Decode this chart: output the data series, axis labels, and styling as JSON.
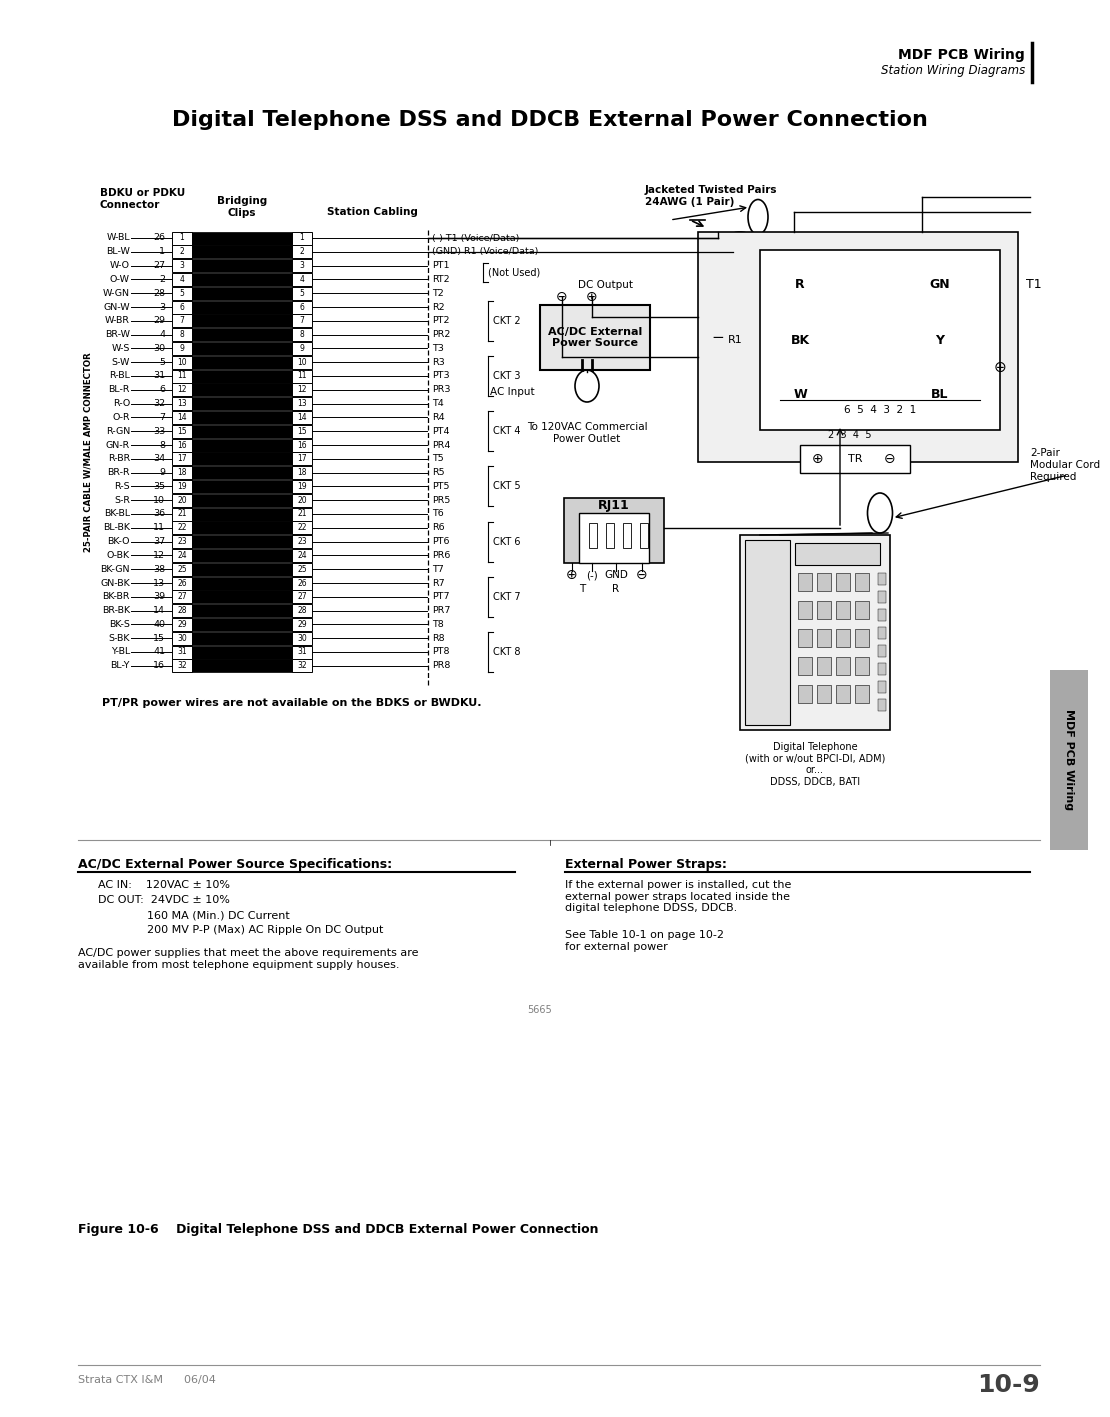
{
  "page_title": "Digital Telephone DSS and DDCB External Power Connection",
  "header_title": "MDF PCB Wiring",
  "header_subtitle": "Station Wiring Diagrams",
  "figure_label": "Figure 10-6    Digital Telephone DSS and DDCB External Power Connection",
  "footer_left": "Strata CTX I&M      06/04",
  "footer_right": "10-9",
  "side_label": "MDF PCB Wiring",
  "connector_label": "BDKU or PDKU\nConnector",
  "bridging_label": "Bridging\nClips",
  "station_cabling_label": "Station Cabling",
  "jacketed_pairs_label": "Jacketed Twisted Pairs\n24AWG (1 Pair)",
  "pair_cable_label": "25-PAIR CABLE W/MALE AMP CONNECTOR",
  "rows": [
    {
      "left_label": "W-BL",
      "left_num": "26",
      "pin": "1",
      "right_label": "T1 (Voice/Data)",
      "prefix": "(-) "
    },
    {
      "left_label": "BL-W",
      "left_num": "1",
      "pin": "2",
      "right_label": "R1 (Voice/Data)",
      "prefix": "(GND) "
    },
    {
      "left_label": "W-O",
      "left_num": "27",
      "pin": "3",
      "right_label": "PT1",
      "prefix": ""
    },
    {
      "left_label": "O-W",
      "left_num": "2",
      "pin": "4",
      "right_label": "RT2",
      "prefix": ""
    },
    {
      "left_label": "W-GN",
      "left_num": "28",
      "pin": "5",
      "right_label": "T2",
      "prefix": ""
    },
    {
      "left_label": "GN-W",
      "left_num": "3",
      "pin": "6",
      "right_label": "R2",
      "prefix": ""
    },
    {
      "left_label": "W-BR",
      "left_num": "29",
      "pin": "7",
      "right_label": "PT2",
      "prefix": ""
    },
    {
      "left_label": "BR-W",
      "left_num": "4",
      "pin": "8",
      "right_label": "PR2",
      "prefix": ""
    },
    {
      "left_label": "W-S",
      "left_num": "30",
      "pin": "9",
      "right_label": "T3",
      "prefix": ""
    },
    {
      "left_label": "S-W",
      "left_num": "5",
      "pin": "10",
      "right_label": "R3",
      "prefix": ""
    },
    {
      "left_label": "R-BL",
      "left_num": "31",
      "pin": "11",
      "right_label": "PT3",
      "prefix": ""
    },
    {
      "left_label": "BL-R",
      "left_num": "6",
      "pin": "12",
      "right_label": "PR3",
      "prefix": ""
    },
    {
      "left_label": "R-O",
      "left_num": "32",
      "pin": "13",
      "right_label": "T4",
      "prefix": ""
    },
    {
      "left_label": "O-R",
      "left_num": "7",
      "pin": "14",
      "right_label": "R4",
      "prefix": ""
    },
    {
      "left_label": "R-GN",
      "left_num": "33",
      "pin": "15",
      "right_label": "PT4",
      "prefix": ""
    },
    {
      "left_label": "GN-R",
      "left_num": "8",
      "pin": "16",
      "right_label": "PR4",
      "prefix": ""
    },
    {
      "left_label": "R-BR",
      "left_num": "34",
      "pin": "17",
      "right_label": "T5",
      "prefix": ""
    },
    {
      "left_label": "BR-R",
      "left_num": "9",
      "pin": "18",
      "right_label": "R5",
      "prefix": ""
    },
    {
      "left_label": "R-S",
      "left_num": "35",
      "pin": "19",
      "right_label": "PT5",
      "prefix": ""
    },
    {
      "left_label": "S-R",
      "left_num": "10",
      "pin": "20",
      "right_label": "PR5",
      "prefix": ""
    },
    {
      "left_label": "BK-BL",
      "left_num": "36",
      "pin": "21",
      "right_label": "T6",
      "prefix": ""
    },
    {
      "left_label": "BL-BK",
      "left_num": "11",
      "pin": "22",
      "right_label": "R6",
      "prefix": ""
    },
    {
      "left_label": "BK-O",
      "left_num": "37",
      "pin": "23",
      "right_label": "PT6",
      "prefix": ""
    },
    {
      "left_label": "O-BK",
      "left_num": "12",
      "pin": "24",
      "right_label": "PR6",
      "prefix": ""
    },
    {
      "left_label": "BK-GN",
      "left_num": "38",
      "pin": "25",
      "right_label": "T7",
      "prefix": ""
    },
    {
      "left_label": "GN-BK",
      "left_num": "13",
      "pin": "26",
      "right_label": "R7",
      "prefix": ""
    },
    {
      "left_label": "BK-BR",
      "left_num": "39",
      "pin": "27",
      "right_label": "PT7",
      "prefix": ""
    },
    {
      "left_label": "BR-BK",
      "left_num": "14",
      "pin": "28",
      "right_label": "PR7",
      "prefix": ""
    },
    {
      "left_label": "BK-S",
      "left_num": "40",
      "pin": "29",
      "right_label": "T8",
      "prefix": ""
    },
    {
      "left_label": "S-BK",
      "left_num": "15",
      "pin": "30",
      "right_label": "R8",
      "prefix": ""
    },
    {
      "left_label": "Y-BL",
      "left_num": "41",
      "pin": "31",
      "right_label": "PT8",
      "prefix": ""
    },
    {
      "left_label": "BL-Y",
      "left_num": "16",
      "pin": "32",
      "right_label": "PR8",
      "prefix": ""
    }
  ],
  "ckt_labels": [
    {
      "label": "CKT 2",
      "pin_range": [
        6,
        8
      ]
    },
    {
      "label": "CKT 3",
      "pin_range": [
        10,
        12
      ]
    },
    {
      "label": "CKT 4",
      "pin_range": [
        14,
        16
      ]
    },
    {
      "label": "CKT 5",
      "pin_range": [
        18,
        20
      ]
    },
    {
      "label": "CKT 6",
      "pin_range": [
        22,
        24
      ]
    },
    {
      "label": "CKT 7",
      "pin_range": [
        26,
        28
      ]
    },
    {
      "label": "CKT 8",
      "pin_range": [
        30,
        32
      ]
    }
  ],
  "pt_note": "(Not Used)",
  "dc_output_label": "DC Output",
  "ac_input_label": "AC Input",
  "power_source_label": "AC/DC External\nPower Source",
  "power_outlet_label": "To 120VAC Commercial\nPower Outlet",
  "rj11_label": "RJ11",
  "phone_label": "Digital Telephone\n(with or w/out BPCI-DI, ADM)\nor...\nDDSS, DDCB, BATI",
  "two_pair_label": "2-Pair\nModular Cord\nRequired",
  "specs_title": "AC/DC External Power Source Specifications:",
  "specs_lines": [
    "AC IN:    120VAC ± 10%",
    "DC OUT:  24VDC ± 10%",
    "              160 MA (Min.) DC Current",
    "              200 MV P-P (Max) AC Ripple On DC Output"
  ],
  "specs_note": "AC/DC power supplies that meet the above requirements are\navailable from most telephone equipment supply houses.",
  "ext_power_title": "External Power Straps:",
  "ext_power_text": "If the external power is installed, cut the\nexternal power straps located inside the\ndigital telephone DDSS, DDCB.",
  "ext_power_note": "See Table 10-1 on page 10-2\nfor external power",
  "pt_pr_note": "PT/PR power wires are not available on the BDKS or BWDKU.",
  "figure_num": "5665",
  "bg_color": "#ffffff"
}
